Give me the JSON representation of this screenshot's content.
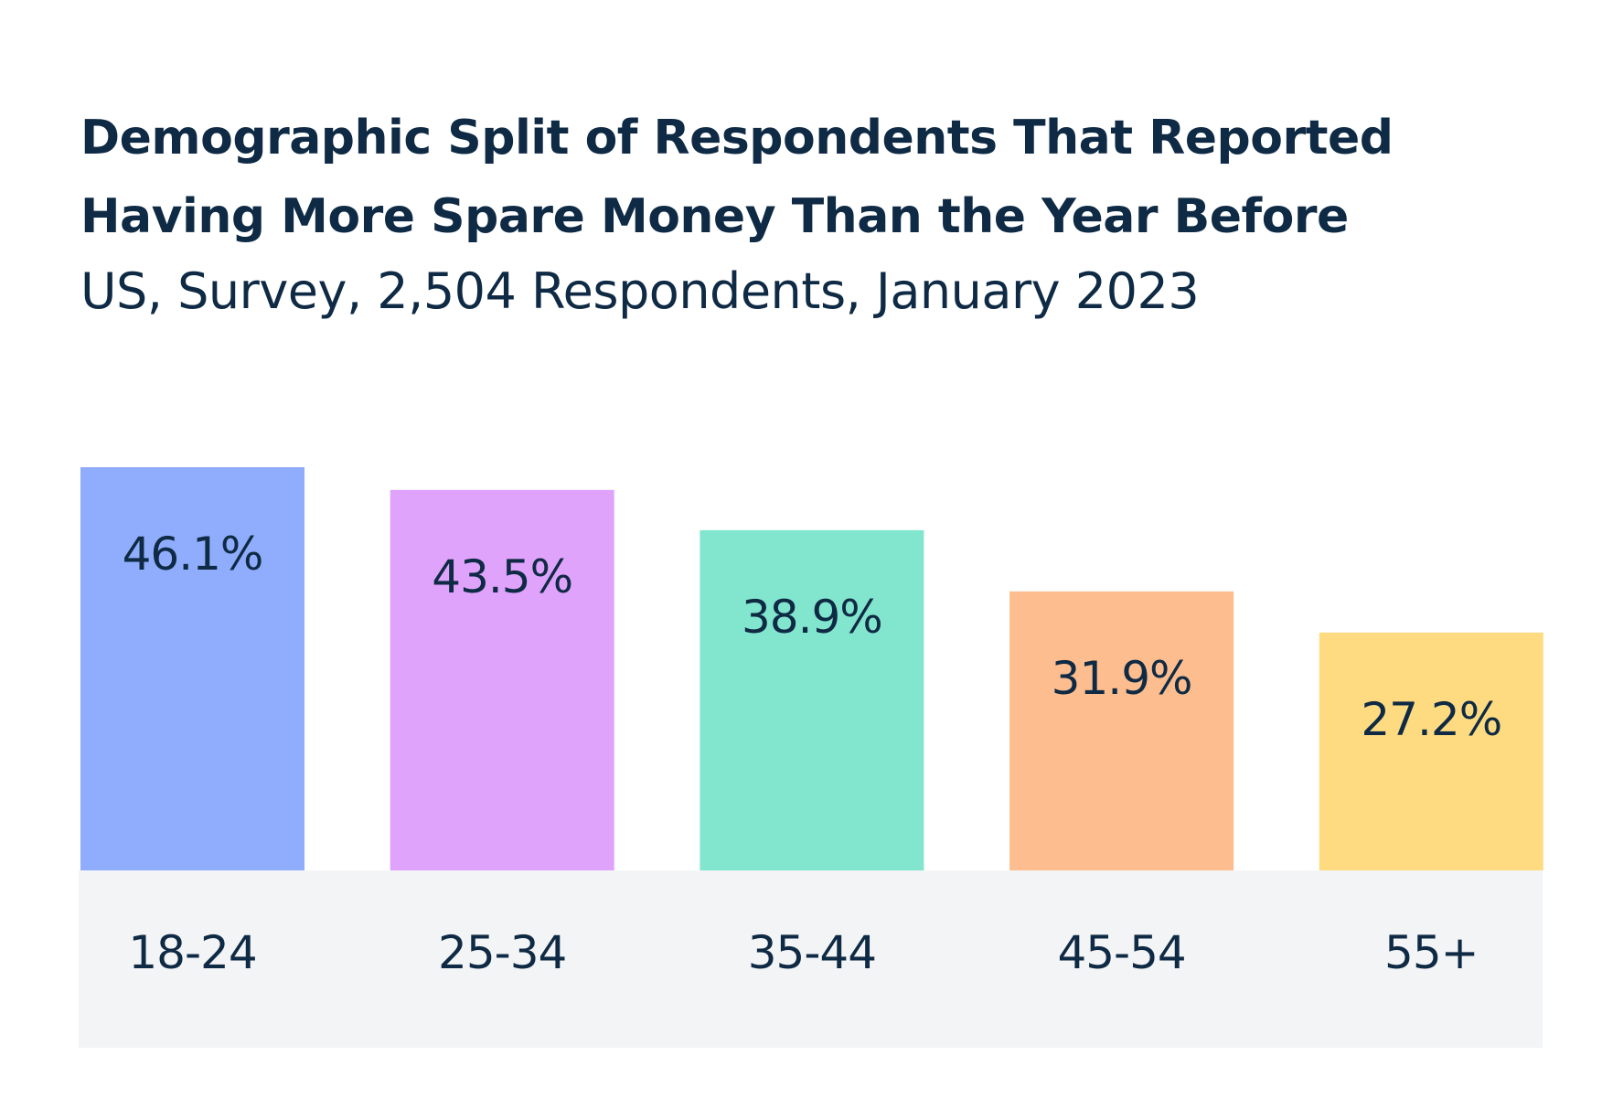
{
  "chart_data": {
    "type": "bar",
    "title": "Demographic Split of Respondents That Reported Having More Spare Money Than the Year Before",
    "title_lines": [
      "Demographic Split of Respondents That Reported",
      "Having More Spare Money Than the Year Before"
    ],
    "subtitle": "US, Survey, 2,504 Respondents, January 2023",
    "categories": [
      "18-24",
      "25-34",
      "35-44",
      "45-54",
      "55+"
    ],
    "values": [
      46.1,
      43.5,
      38.9,
      31.9,
      27.2
    ],
    "value_labels": [
      "46.1%",
      "43.5%",
      "38.9%",
      "31.9%",
      "27.2%"
    ],
    "colors": [
      "#8fadfc",
      "#e0a3fc",
      "#82e5cd",
      "#fdbd8e",
      "#fedb80"
    ],
    "xlabel": "",
    "ylabel": "",
    "ylim": [
      0,
      46.1
    ],
    "grid": false,
    "text_color": "#0f2a44",
    "axis_band_color": "#f3f4f6"
  }
}
